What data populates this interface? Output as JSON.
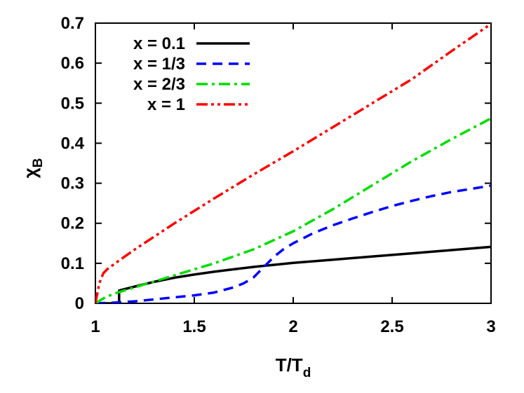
{
  "chart_data": {
    "type": "line",
    "xlabel": {
      "main": "T/T",
      "sub": "d"
    },
    "ylabel": {
      "main": "χ",
      "sub": "B"
    },
    "xlim": [
      1,
      3
    ],
    "ylim": [
      0,
      0.7
    ],
    "grid": false,
    "legend_position": "top-left",
    "xticks": [
      {
        "value": 1,
        "label": "1"
      },
      {
        "value": 1.5,
        "label": "1.5"
      },
      {
        "value": 2,
        "label": "2"
      },
      {
        "value": 2.5,
        "label": "2.5"
      },
      {
        "value": 3,
        "label": "3"
      }
    ],
    "yticks": [
      {
        "value": 0,
        "label": "0"
      },
      {
        "value": 0.1,
        "label": "0.1"
      },
      {
        "value": 0.2,
        "label": "0.2"
      },
      {
        "value": 0.3,
        "label": "0.3"
      },
      {
        "value": 0.4,
        "label": "0.4"
      },
      {
        "value": 0.5,
        "label": "0.5"
      },
      {
        "value": 0.6,
        "label": "0.6"
      },
      {
        "value": 0.7,
        "label": "0.7"
      }
    ],
    "series": [
      {
        "name": "x = 0.1",
        "color": "#000000",
        "dash": "solid",
        "points": [
          [
            1.0,
            0.0
          ],
          [
            1.12,
            0.0
          ],
          [
            1.12,
            0.032
          ],
          [
            1.2,
            0.042
          ],
          [
            1.3,
            0.054
          ],
          [
            1.4,
            0.064
          ],
          [
            1.5,
            0.072
          ],
          [
            1.6,
            0.079
          ],
          [
            1.7,
            0.085
          ],
          [
            1.8,
            0.091
          ],
          [
            1.9,
            0.096
          ],
          [
            2.0,
            0.101
          ],
          [
            2.2,
            0.109
          ],
          [
            2.4,
            0.117
          ],
          [
            2.6,
            0.125
          ],
          [
            2.8,
            0.133
          ],
          [
            3.0,
            0.141
          ]
        ]
      },
      {
        "name": "x = 1/3",
        "color": "#0000ff",
        "dash": "dashed",
        "points": [
          [
            1.0,
            0.0
          ],
          [
            1.1,
            0.002
          ],
          [
            1.2,
            0.005
          ],
          [
            1.3,
            0.01
          ],
          [
            1.4,
            0.015
          ],
          [
            1.5,
            0.02
          ],
          [
            1.6,
            0.027
          ],
          [
            1.7,
            0.04
          ],
          [
            1.75,
            0.05
          ],
          [
            1.8,
            0.065
          ],
          [
            1.85,
            0.09
          ],
          [
            1.9,
            0.115
          ],
          [
            1.95,
            0.135
          ],
          [
            2.0,
            0.15
          ],
          [
            2.1,
            0.175
          ],
          [
            2.2,
            0.195
          ],
          [
            2.3,
            0.212
          ],
          [
            2.4,
            0.228
          ],
          [
            2.5,
            0.243
          ],
          [
            2.6,
            0.256
          ],
          [
            2.7,
            0.268
          ],
          [
            2.8,
            0.278
          ],
          [
            2.9,
            0.286
          ],
          [
            3.0,
            0.294
          ]
        ]
      },
      {
        "name": "x = 2/3",
        "color": "#00dd00",
        "dash": "dashdot",
        "points": [
          [
            1.0,
            0.0
          ],
          [
            1.05,
            0.015
          ],
          [
            1.1,
            0.025
          ],
          [
            1.2,
            0.04
          ],
          [
            1.4,
            0.07
          ],
          [
            1.6,
            0.1
          ],
          [
            1.8,
            0.135
          ],
          [
            2.0,
            0.18
          ],
          [
            2.2,
            0.235
          ],
          [
            2.4,
            0.295
          ],
          [
            2.6,
            0.355
          ],
          [
            2.8,
            0.41
          ],
          [
            3.0,
            0.462
          ]
        ]
      },
      {
        "name": "x = 1",
        "color": "#ff0000",
        "dash": "dashdotdot",
        "points": [
          [
            1.0,
            0.0
          ],
          [
            1.02,
            0.05
          ],
          [
            1.04,
            0.075
          ],
          [
            1.06,
            0.085
          ],
          [
            1.1,
            0.1
          ],
          [
            1.2,
            0.135
          ],
          [
            1.4,
            0.2
          ],
          [
            1.6,
            0.262
          ],
          [
            1.8,
            0.322
          ],
          [
            2.0,
            0.38
          ],
          [
            2.2,
            0.44
          ],
          [
            2.4,
            0.5
          ],
          [
            2.6,
            0.56
          ],
          [
            2.8,
            0.63
          ],
          [
            3.0,
            0.698
          ]
        ]
      }
    ]
  }
}
